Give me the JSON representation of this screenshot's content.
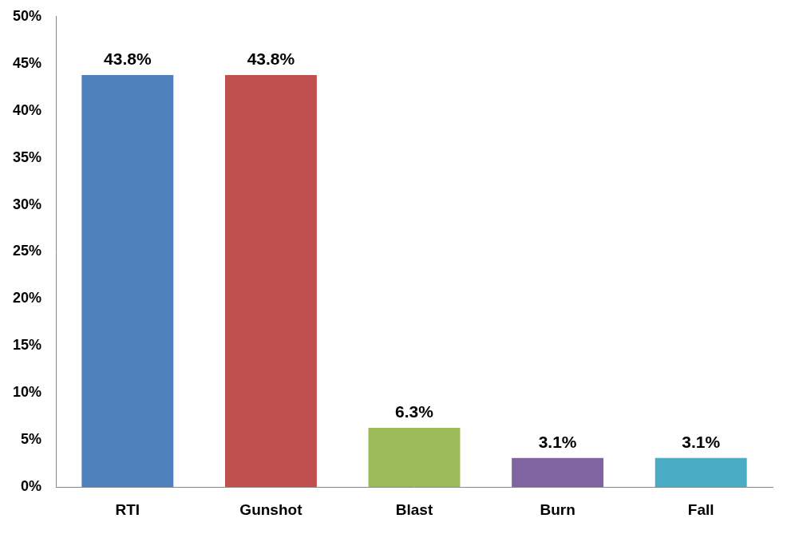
{
  "chart_data": {
    "type": "bar",
    "categories": [
      "RTI",
      "Gunshot",
      "Blast",
      "Burn",
      "Fall"
    ],
    "values": [
      43.8,
      43.8,
      6.3,
      3.1,
      3.1
    ],
    "value_labels": [
      "43.8%",
      "43.8%",
      "6.3%",
      "3.1%",
      "3.1%"
    ],
    "colors": [
      "#4f81bd",
      "#c0504d",
      "#9bbb59",
      "#8064a2",
      "#4bacc6"
    ],
    "ylim": [
      0,
      50
    ],
    "yticks": [
      {
        "value": 0,
        "label": "0%"
      },
      {
        "value": 5,
        "label": "5%"
      },
      {
        "value": 10,
        "label": "10%"
      },
      {
        "value": 15,
        "label": "15%"
      },
      {
        "value": 20,
        "label": "20%"
      },
      {
        "value": 25,
        "label": "25%"
      },
      {
        "value": 30,
        "label": "30%"
      },
      {
        "value": 35,
        "label": "35%"
      },
      {
        "value": 40,
        "label": "40%"
      },
      {
        "value": 45,
        "label": "45%"
      },
      {
        "value": 50,
        "label": "50%"
      }
    ],
    "grid": false,
    "data_labels": true
  }
}
